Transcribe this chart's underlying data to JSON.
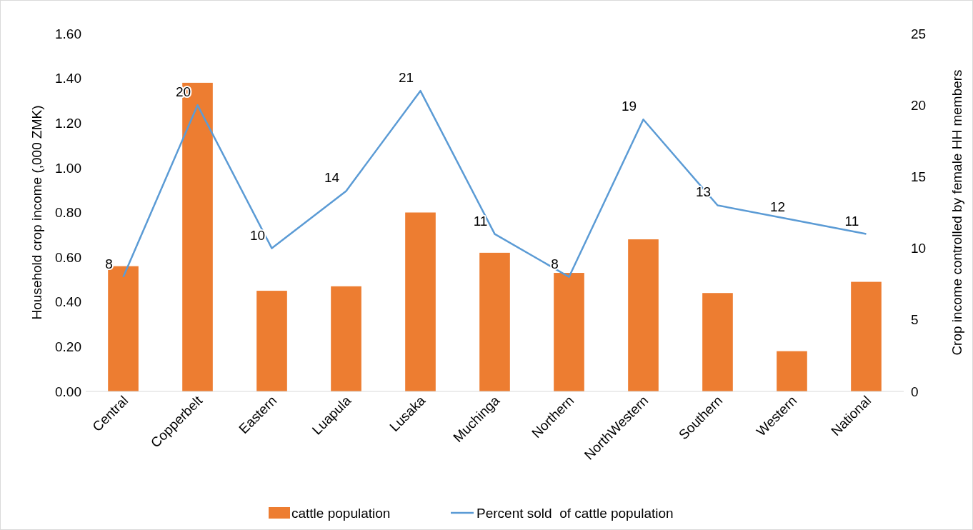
{
  "chart_data": {
    "type": "bar",
    "categories": [
      "Central",
      "Copperbelt",
      "Eastern",
      "Luapula",
      "Lusaka",
      "Muchinga",
      "Northern",
      "NorthWestern",
      "Southern",
      "Western",
      "National"
    ],
    "ylabel": "Household crop income (,000 ZMK)",
    "y2label": "Crop income controlled by female HH members",
    "series": [
      {
        "name": "cattle population",
        "color": "#ed7d31",
        "values": [
          0.56,
          1.38,
          0.45,
          0.47,
          0.8,
          0.62,
          0.53,
          0.68,
          0.44,
          0.18,
          0.49
        ]
      },
      {
        "name": "Percent sold  of cattle population",
        "type": "line",
        "axis": "y2",
        "color": "#5b9bd5",
        "data_labels": true,
        "values": [
          8,
          20,
          10,
          14,
          21,
          11,
          8,
          19,
          13,
          12,
          11
        ]
      }
    ],
    "ylim": [
      0,
      1.6
    ],
    "yticks": [
      {
        "value": 0,
        "label": "0.00"
      },
      {
        "value": 0.2,
        "label": "0.20"
      },
      {
        "value": 0.4,
        "label": "0.40"
      },
      {
        "value": 0.6,
        "label": "0.60"
      },
      {
        "value": 0.8,
        "label": "0.80"
      },
      {
        "value": 1,
        "label": "1.00"
      },
      {
        "value": 1.2,
        "label": "1.20"
      },
      {
        "value": 1.4,
        "label": "1.40"
      },
      {
        "value": 1.6,
        "label": "1.60"
      }
    ],
    "y2lim": [
      0,
      25
    ],
    "y2ticks": [
      0,
      5,
      10,
      15,
      20,
      25
    ],
    "legend": "bottom",
    "grid": false
  }
}
